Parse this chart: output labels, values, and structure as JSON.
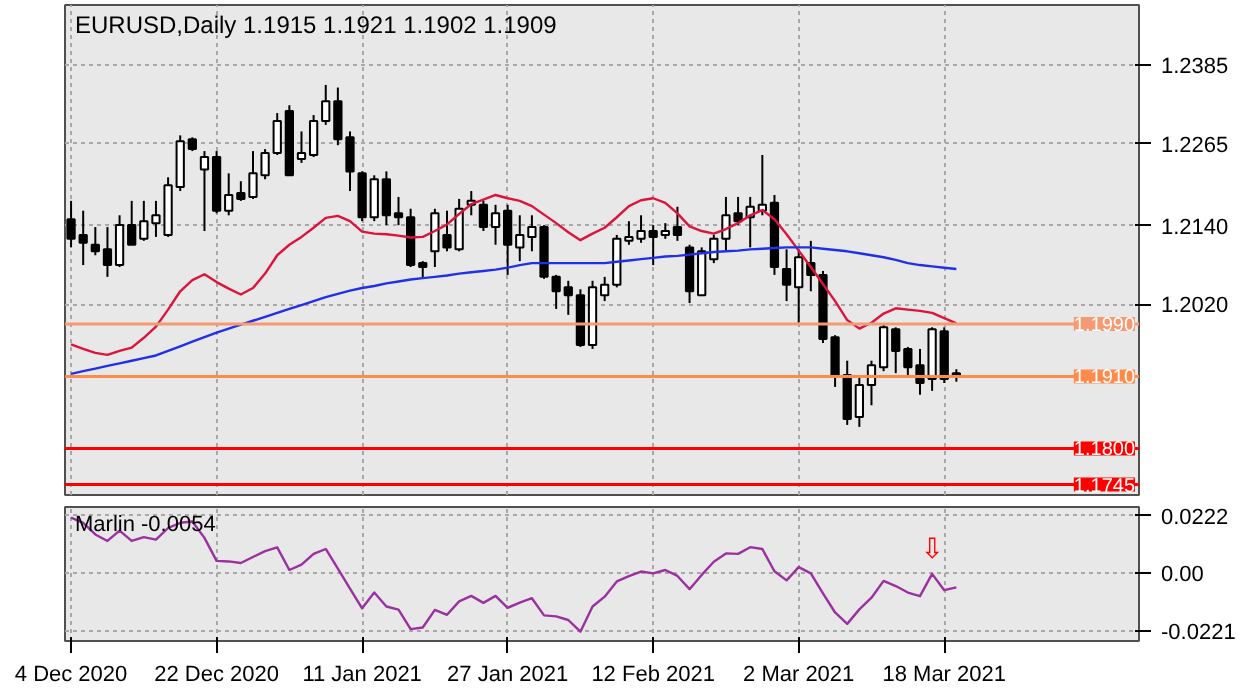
{
  "chart_data": [
    {
      "type": "candlestick",
      "title": "EURUSD,Daily  1.1915 1.1921 1.1902 1.1909",
      "ylim": [
        1.1729,
        1.2477
      ],
      "categories": [
        null,
        null,
        null,
        null,
        null,
        null,
        null,
        null,
        null,
        null,
        null,
        null,
        null,
        null,
        null,
        null,
        null,
        null,
        null,
        null,
        null,
        null,
        null,
        null,
        null,
        null,
        null,
        null,
        null,
        null,
        null,
        null,
        null,
        null,
        null,
        null,
        null,
        null,
        null,
        null,
        null,
        null,
        null,
        null,
        null,
        null,
        null,
        null,
        null,
        null,
        null,
        null,
        null,
        null,
        null,
        null,
        null,
        null,
        null,
        null,
        null,
        null,
        null,
        null,
        null,
        null,
        null,
        null,
        null,
        null,
        null,
        null,
        null,
        null
      ],
      "yticks": [
        {
          "value": 1.2385,
          "label": "1.2385"
        },
        {
          "value": 1.2265,
          "label": "1.2265"
        },
        {
          "value": 1.214,
          "label": "1.2140"
        },
        {
          "value": 1.202,
          "label": "1.2020"
        }
      ],
      "tick_labels": "y",
      "grid": true,
      "ohlc": [
        [
          1.215,
          1.2178,
          1.2107,
          1.212
        ],
        [
          1.2126,
          1.2163,
          1.208,
          1.2114
        ],
        [
          1.2111,
          1.2138,
          1.2095,
          1.2101
        ],
        [
          1.2104,
          1.2138,
          1.2062,
          1.208
        ],
        [
          1.208,
          1.2156,
          1.2077,
          1.2141
        ],
        [
          1.2141,
          1.2178,
          1.2111,
          1.2111
        ],
        [
          1.212,
          1.2178,
          1.2117,
          1.2147
        ],
        [
          1.2144,
          1.2178,
          1.2123,
          1.2156
        ],
        [
          1.2126,
          1.2214,
          1.2123,
          1.2202
        ],
        [
          1.2199,
          1.2278,
          1.2193,
          1.2269
        ],
        [
          1.2272,
          1.2275,
          1.2254,
          1.2257
        ],
        [
          1.2226,
          1.2254,
          1.2132,
          1.2245
        ],
        [
          1.2245,
          1.2254,
          1.2159,
          1.2163
        ],
        [
          1.2163,
          1.222,
          1.2156,
          1.2187
        ],
        [
          1.219,
          1.2208,
          1.2178,
          1.2181
        ],
        [
          1.2184,
          1.2254,
          1.2181,
          1.222
        ],
        [
          1.2217,
          1.2257,
          1.2211,
          1.2251
        ],
        [
          1.2251,
          1.2312,
          1.2248,
          1.23
        ],
        [
          1.2315,
          1.2324,
          1.2217,
          1.2217
        ],
        [
          1.2242,
          1.2284,
          1.2236,
          1.2251
        ],
        [
          1.2248,
          1.2309,
          1.2245,
          1.23
        ],
        [
          1.23,
          1.2355,
          1.2294,
          1.233
        ],
        [
          1.233,
          1.2351,
          1.2263,
          1.2272
        ],
        [
          1.2275,
          1.2284,
          1.2193,
          1.2223
        ],
        [
          1.222,
          1.2223,
          1.2147,
          1.2153
        ],
        [
          1.2153,
          1.2217,
          1.2147,
          1.2211
        ],
        [
          1.2211,
          1.2223,
          1.2141,
          1.2156
        ],
        [
          1.2159,
          1.2184,
          1.2141,
          1.2153
        ],
        [
          1.2153,
          1.2166,
          1.2077,
          1.208
        ],
        [
          1.2083,
          1.2086,
          1.2059,
          1.2077
        ],
        [
          1.2101,
          1.2166,
          1.2077,
          1.2159
        ],
        [
          1.2126,
          1.2163,
          1.2101,
          1.2107
        ],
        [
          1.2104,
          1.2181,
          1.2101,
          1.2166
        ],
        [
          1.2172,
          1.2193,
          1.2156,
          1.2178
        ],
        [
          1.2172,
          1.2178,
          1.2132,
          1.2138
        ],
        [
          1.2138,
          1.2172,
          1.2111,
          1.2159
        ],
        [
          1.2163,
          1.2172,
          1.2065,
          1.2111
        ],
        [
          1.2107,
          1.2156,
          1.2086,
          1.2126
        ],
        [
          1.2123,
          1.2156,
          1.2101,
          1.2138
        ],
        [
          1.2138,
          1.2141,
          1.2059,
          1.2062
        ],
        [
          1.2062,
          1.2065,
          1.2013,
          1.204
        ],
        [
          1.2046,
          1.2056,
          1.2004,
          1.2034
        ],
        [
          1.2034,
          1.2043,
          1.1955,
          1.1958
        ],
        [
          1.1958,
          1.2056,
          1.1952,
          1.2046
        ],
        [
          1.2034,
          1.2062,
          1.2025,
          1.205
        ],
        [
          1.205,
          1.2126,
          1.2046,
          1.212
        ],
        [
          1.2117,
          1.2147,
          1.2111,
          1.2123
        ],
        [
          1.212,
          1.2156,
          1.2114,
          1.2132
        ],
        [
          1.2132,
          1.2141,
          1.208,
          1.2123
        ],
        [
          1.2126,
          1.2144,
          1.212,
          1.2132
        ],
        [
          1.2138,
          1.2169,
          1.2117,
          1.2126
        ],
        [
          1.2107,
          1.2111,
          1.2022,
          1.204
        ],
        [
          1.2034,
          1.2107,
          1.2034,
          1.2101
        ],
        [
          1.2089,
          1.2126,
          1.2083,
          1.212
        ],
        [
          1.212,
          1.2184,
          1.2101,
          1.2156
        ],
        [
          1.2159,
          1.2184,
          1.2141,
          1.2147
        ],
        [
          1.2153,
          1.2184,
          1.2107,
          1.2169
        ],
        [
          1.2163,
          1.2248,
          1.2156,
          1.2172
        ],
        [
          1.2175,
          1.2187,
          1.2065,
          1.2077
        ],
        [
          1.2074,
          1.2104,
          1.2025,
          1.205
        ],
        [
          1.2046,
          1.2104,
          1.1992,
          1.2092
        ],
        [
          1.2083,
          1.2117,
          1.204,
          1.2065
        ],
        [
          1.2065,
          1.2071,
          1.1961,
          1.1967
        ],
        [
          1.197,
          1.1973,
          1.1894,
          1.1912
        ],
        [
          1.1912,
          1.1934,
          1.1836,
          1.1845
        ],
        [
          1.1848,
          1.1909,
          1.1833,
          1.1897
        ],
        [
          1.1897,
          1.1934,
          1.1866,
          1.1927
        ],
        [
          1.1924,
          1.1989,
          1.1918,
          1.1985
        ],
        [
          1.1982,
          1.1985,
          1.1915,
          1.1949
        ],
        [
          1.1952,
          1.1955,
          1.1912,
          1.1924
        ],
        [
          1.1927,
          1.1952,
          1.1882,
          1.19
        ],
        [
          1.1906,
          1.1985,
          1.1888,
          1.1982
        ],
        [
          1.1979,
          1.1985,
          1.19,
          1.1906
        ],
        [
          1.1915,
          1.1921,
          1.1902,
          1.1909
        ]
      ],
      "series": [
        {
          "type": "line",
          "color": "#dc143c",
          "values": [
            1.1959,
            1.1952,
            1.1946,
            1.1943,
            1.1949,
            1.1954,
            1.1969,
            1.1986,
            1.2012,
            1.204,
            1.2057,
            1.2066,
            1.2054,
            1.2044,
            1.2035,
            1.2045,
            1.2067,
            1.2095,
            1.2111,
            1.2123,
            1.2137,
            1.2152,
            1.2155,
            1.2147,
            1.2131,
            1.2128,
            1.2127,
            1.2125,
            1.2122,
            1.2123,
            1.2132,
            1.2142,
            1.2158,
            1.2173,
            1.218,
            1.2187,
            1.2182,
            1.2178,
            1.217,
            1.2157,
            1.2144,
            1.213,
            1.2118,
            1.2128,
            1.2137,
            1.2153,
            1.217,
            1.2179,
            1.2182,
            1.2175,
            1.2159,
            1.2139,
            1.2132,
            1.2128,
            1.2135,
            1.2144,
            1.2156,
            1.2164,
            1.215,
            1.2127,
            1.2102,
            1.2077,
            1.2051,
            1.2025,
            1.1996,
            1.1983,
            1.1992,
            1.2006,
            1.2014,
            1.2012,
            1.201,
            1.2007,
            1.1999,
            1.1991
          ]
        },
        {
          "type": "line",
          "color": "#2030e8",
          "values": [
            1.1914,
            1.1918,
            1.1922,
            1.1926,
            1.193,
            1.1934,
            1.1938,
            1.1942,
            1.1949,
            1.1956,
            1.1963,
            1.197,
            1.1977,
            1.1983,
            1.1989,
            1.1995,
            1.2001,
            1.2007,
            1.2013,
            1.2019,
            1.2025,
            1.2031,
            1.2036,
            1.2041,
            1.2045,
            1.2048,
            1.2052,
            1.2055,
            1.2058,
            1.206,
            1.2062,
            1.2064,
            1.2067,
            1.2069,
            1.2071,
            1.2073,
            1.2076,
            1.208,
            1.2083,
            1.2083,
            1.2083,
            1.2083,
            1.2083,
            1.2083,
            1.2083,
            1.2085,
            1.2087,
            1.2089,
            1.2091,
            1.2093,
            1.2094,
            1.2096,
            1.2098,
            1.21,
            1.2101,
            1.2102,
            1.2104,
            1.2105,
            1.2106,
            1.2107,
            1.2107,
            1.2107,
            1.2105,
            1.2103,
            1.2101,
            1.2098,
            1.2095,
            1.2092,
            1.2088,
            1.2083,
            1.208,
            1.2078,
            1.2076,
            1.2074
          ]
        }
      ],
      "ref_lines": [
        {
          "axis": "y",
          "value": 1.199,
          "label": "1.1990",
          "color": "#f59a72"
        },
        {
          "axis": "y",
          "value": 1.191,
          "label": "1.1910",
          "color": "#ff8a4c"
        },
        {
          "axis": "y",
          "value": 1.18,
          "label": "1.1800",
          "color": "#ff0000"
        },
        {
          "axis": "y",
          "value": 1.1745,
          "label": "1.1745",
          "color": "#ff0000"
        }
      ]
    },
    {
      "type": "line",
      "title": "Marlin -0.0054",
      "ylim": [
        -0.0261,
        0.0256
      ],
      "categories": [
        "4 Dec 2020",
        null,
        null,
        null,
        null,
        null,
        null,
        null,
        null,
        null,
        null,
        null,
        "22 Dec 2020",
        null,
        null,
        null,
        null,
        null,
        null,
        null,
        null,
        null,
        null,
        null,
        "11 Jan 2021",
        null,
        null,
        null,
        null,
        null,
        null,
        null,
        null,
        null,
        null,
        null,
        "27 Jan 2021",
        null,
        null,
        null,
        null,
        null,
        null,
        null,
        null,
        null,
        null,
        null,
        "12 Feb 2021",
        null,
        null,
        null,
        null,
        null,
        null,
        null,
        null,
        null,
        null,
        null,
        "2 Mar 2021",
        null,
        null,
        null,
        null,
        null,
        null,
        null,
        null,
        null,
        null,
        null,
        "18 Mar 2021",
        null
      ],
      "yticks": [
        0.0222,
        {
          "value": 0,
          "label": "0.00"
        },
        -0.0221
      ],
      "grid": true,
      "series": [
        {
          "color": "#9b30a0",
          "values": [
            0.0215,
            0.0195,
            0.015,
            0.0125,
            0.0165,
            0.0125,
            0.014,
            0.013,
            0.0175,
            0.0195,
            0.02,
            0.0137,
            0.0048,
            0.0046,
            0.004,
            0.0063,
            0.0086,
            0.01,
            0.0013,
            0.0034,
            0.0075,
            0.0094,
            0.0018,
            -0.0059,
            -0.0135,
            -0.0074,
            -0.0128,
            -0.014,
            -0.0215,
            -0.0209,
            -0.0141,
            -0.016,
            -0.0108,
            -0.0087,
            -0.0114,
            -0.0087,
            -0.0133,
            -0.0113,
            -0.0096,
            -0.0162,
            -0.0166,
            -0.018,
            -0.0225,
            -0.0128,
            -0.009,
            -0.0031,
            -0.0011,
            0.0007,
            0.0,
            0.0013,
            -0.001,
            -0.0061,
            -0.0006,
            0.0045,
            0.0077,
            0.0075,
            0.0101,
            0.0094,
            0.0008,
            -0.0027,
            0.0024,
            0.0,
            -0.0077,
            -0.0151,
            -0.0195,
            -0.0139,
            -0.0094,
            -0.0029,
            -0.0049,
            -0.0074,
            -0.0088,
            -0.0002,
            -0.0065,
            -0.0054
          ]
        }
      ],
      "annotations": [
        "⇩"
      ]
    }
  ]
}
